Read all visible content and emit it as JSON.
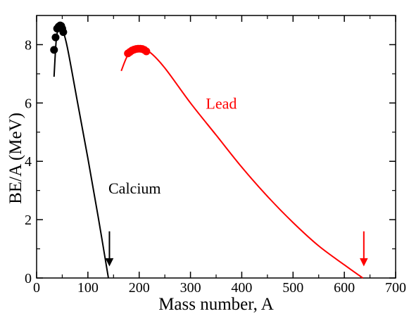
{
  "chart_data": {
    "type": "line",
    "xlabel": "Mass number, A",
    "ylabel": "BE/A (MeV)",
    "xlim": [
      0,
      700
    ],
    "ylim": [
      0,
      9
    ],
    "xticks": [
      0,
      100,
      200,
      300,
      400,
      500,
      600,
      700
    ],
    "yticks": [
      0,
      2,
      4,
      6,
      8
    ],
    "grid": false,
    "legend": "none",
    "series": [
      {
        "name": "Calcium",
        "color": "#000000",
        "curve": [
          [
            34,
            6.9
          ],
          [
            38,
            8.1
          ],
          [
            42,
            8.55
          ],
          [
            46,
            8.65
          ],
          [
            50,
            8.55
          ],
          [
            60,
            7.9
          ],
          [
            80,
            6.0
          ],
          [
            100,
            4.1
          ],
          [
            120,
            2.1
          ],
          [
            140,
            0.0
          ]
        ],
        "points": [
          [
            34,
            7.82
          ],
          [
            37,
            8.25
          ],
          [
            40,
            8.55
          ],
          [
            43,
            8.62
          ],
          [
            46,
            8.66
          ],
          [
            48,
            8.64
          ],
          [
            50,
            8.55
          ],
          [
            52,
            8.43
          ]
        ],
        "label": "Calcium",
        "arrow_x": 142
      },
      {
        "name": "Lead",
        "color": "#ff0000",
        "curve": [
          [
            165,
            7.1
          ],
          [
            180,
            7.7
          ],
          [
            200,
            7.85
          ],
          [
            220,
            7.75
          ],
          [
            250,
            7.2
          ],
          [
            300,
            6.0
          ],
          [
            350,
            4.9
          ],
          [
            400,
            3.8
          ],
          [
            450,
            2.8
          ],
          [
            500,
            1.9
          ],
          [
            550,
            1.1
          ],
          [
            600,
            0.45
          ],
          [
            636,
            0.0
          ]
        ],
        "points": [
          [
            178,
            7.7
          ],
          [
            182,
            7.75
          ],
          [
            186,
            7.8
          ],
          [
            190,
            7.83
          ],
          [
            194,
            7.85
          ],
          [
            198,
            7.86
          ],
          [
            202,
            7.86
          ],
          [
            206,
            7.85
          ],
          [
            210,
            7.82
          ],
          [
            214,
            7.77
          ]
        ],
        "label": "Lead",
        "arrow_x": 638
      }
    ],
    "annotations": [
      {
        "text": "Calcium",
        "x": 140,
        "y": 2.9,
        "color": "#000000"
      },
      {
        "text": "Lead",
        "x": 330,
        "y": 5.8,
        "color": "#ff0000"
      }
    ]
  }
}
